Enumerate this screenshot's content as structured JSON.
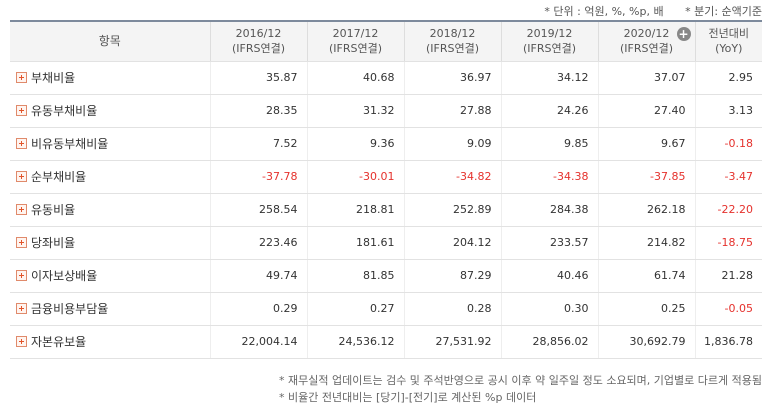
{
  "top_note": {
    "unit": "* 단위 : 억원, %, %p, 배",
    "period": "* 분기: 순액기준"
  },
  "table": {
    "headers": [
      {
        "line1": "항목",
        "line2": ""
      },
      {
        "line1": "2016/12",
        "line2": "(IFRS연결)"
      },
      {
        "line1": "2017/12",
        "line2": "(IFRS연결)"
      },
      {
        "line1": "2018/12",
        "line2": "(IFRS연결)"
      },
      {
        "line1": "2019/12",
        "line2": "(IFRS연결)"
      },
      {
        "line1": "2020/12",
        "line2": "(IFRS연결)"
      },
      {
        "line1": "전년대비",
        "line2": "(YoY)"
      }
    ],
    "expand_icon": "plus-circle-icon",
    "rows": [
      {
        "label": "부채비율",
        "values": [
          "35.87",
          "40.68",
          "36.97",
          "34.12",
          "37.07",
          "2.95"
        ]
      },
      {
        "label": "유동부채비율",
        "values": [
          "28.35",
          "31.32",
          "27.88",
          "24.26",
          "27.40",
          "3.13"
        ]
      },
      {
        "label": "비유동부채비율",
        "values": [
          "7.52",
          "9.36",
          "9.09",
          "9.85",
          "9.67",
          "-0.18"
        ]
      },
      {
        "label": "순부채비율",
        "values": [
          "-37.78",
          "-30.01",
          "-34.82",
          "-34.38",
          "-37.85",
          "-3.47"
        ]
      },
      {
        "label": "유동비율",
        "values": [
          "258.54",
          "218.81",
          "252.89",
          "284.38",
          "262.18",
          "-22.20"
        ]
      },
      {
        "label": "당좌비율",
        "values": [
          "223.46",
          "181.61",
          "204.12",
          "233.57",
          "214.82",
          "-18.75"
        ]
      },
      {
        "label": "이자보상배율",
        "values": [
          "49.74",
          "81.85",
          "87.29",
          "40.46",
          "61.74",
          "21.28"
        ]
      },
      {
        "label": "금융비용부담율",
        "values": [
          "0.29",
          "0.27",
          "0.28",
          "0.30",
          "0.25",
          "-0.05"
        ]
      },
      {
        "label": "자본유보율",
        "values": [
          "22,004.14",
          "24,536.12",
          "27,531.92",
          "28,856.02",
          "30,692.79",
          "1,836.78"
        ]
      }
    ],
    "negative_color": "#e5322d"
  },
  "footnotes": [
    "* 재무실적 업데이트는 검수 및 주석반영으로 공시 이후 약 일주일 정도 소요되며, 기업별로 다르게 적용됨",
    "* 비율간 전년대비는 [당기]-[전기]로 계산된 %p 데이터"
  ]
}
